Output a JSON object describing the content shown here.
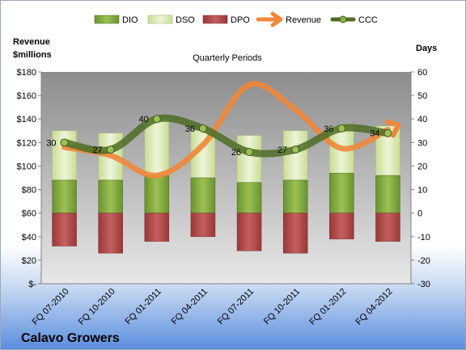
{
  "chart_data": {
    "type": "bar",
    "title": "Quarterly Periods",
    "company": "Calavo Growers",
    "left_axis_label": [
      "Revenue",
      "$millions"
    ],
    "right_axis_label": "Days",
    "left_ylim": [
      0,
      180
    ],
    "left_ticks": [
      "$-",
      "$20",
      "$40",
      "$60",
      "$80",
      "$100",
      "$120",
      "$140",
      "$160",
      "$180"
    ],
    "left_tick_values": [
      0,
      20,
      40,
      60,
      80,
      100,
      120,
      140,
      160,
      180
    ],
    "right_ylim": [
      -30,
      60
    ],
    "right_ticks": [
      "-30",
      "-20",
      "-10",
      "0",
      "10",
      "20",
      "30",
      "40",
      "50",
      "60"
    ],
    "right_tick_values": [
      -30,
      -20,
      -10,
      0,
      10,
      20,
      30,
      40,
      50,
      60
    ],
    "categories": [
      "FQ 07-2010",
      "FQ 10-2010",
      "FQ 01-2011",
      "FQ 04-2011",
      "FQ 07-2011",
      "FQ 10-2011",
      "FQ 01-2012",
      "FQ 04-2012"
    ],
    "series": [
      {
        "name": "DIO",
        "axis": "right",
        "type": "bar",
        "color": "#7ea43c",
        "values": [
          14,
          14,
          16,
          15,
          13,
          14,
          17,
          16
        ]
      },
      {
        "name": "DSO",
        "axis": "right",
        "type": "bar",
        "color": "#dde9ba",
        "values": [
          21,
          20,
          24,
          20,
          20,
          21,
          20,
          21
        ]
      },
      {
        "name": "DPO",
        "axis": "right",
        "type": "bar",
        "color": "#b34a4a",
        "values": [
          -14,
          -17,
          -12,
          -10,
          -16,
          -17,
          -11,
          -12
        ]
      },
      {
        "name": "Revenue",
        "axis": "left",
        "type": "line",
        "color": "#f0873a",
        "values": [
          116,
          109,
          92,
          118,
          169,
          148,
          115,
          131
        ]
      },
      {
        "name": "CCC",
        "axis": "right",
        "type": "line",
        "color": "#4e6d24",
        "values": [
          30,
          27,
          40,
          36,
          26,
          27,
          36,
          34
        ],
        "labels": [
          "30",
          "27",
          "40",
          "36",
          "26",
          "27",
          "36",
          "34"
        ]
      }
    ],
    "legend_position": "top",
    "grid": false
  }
}
